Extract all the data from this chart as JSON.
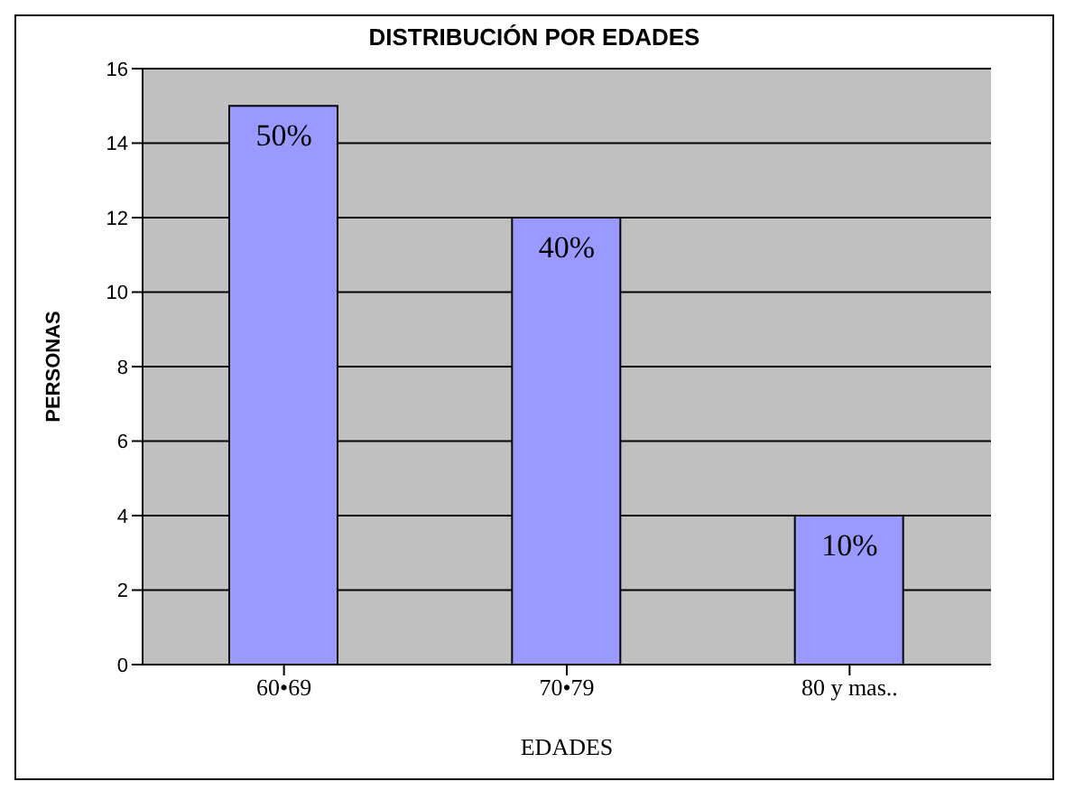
{
  "chart_data": {
    "type": "bar",
    "title": "DISTRIBUCIÓN POR EDADES",
    "xlabel": "EDADES",
    "ylabel": "PERSONAS",
    "categories": [
      "60•69",
      "70•79",
      "80  y mas.."
    ],
    "values": [
      15,
      12,
      4
    ],
    "color": "#9999ff",
    "annotations": [
      {
        "text": "50%",
        "x": "60•69",
        "y": 15
      },
      {
        "text": "40%",
        "x": "70•79",
        "y": 12
      },
      {
        "text": "10%",
        "x": "80  y mas..",
        "y": 4
      }
    ],
    "ylim": [
      0,
      16
    ],
    "yticks": [
      0,
      2,
      4,
      6,
      8,
      10,
      12,
      14,
      16
    ],
    "grid": "y"
  }
}
